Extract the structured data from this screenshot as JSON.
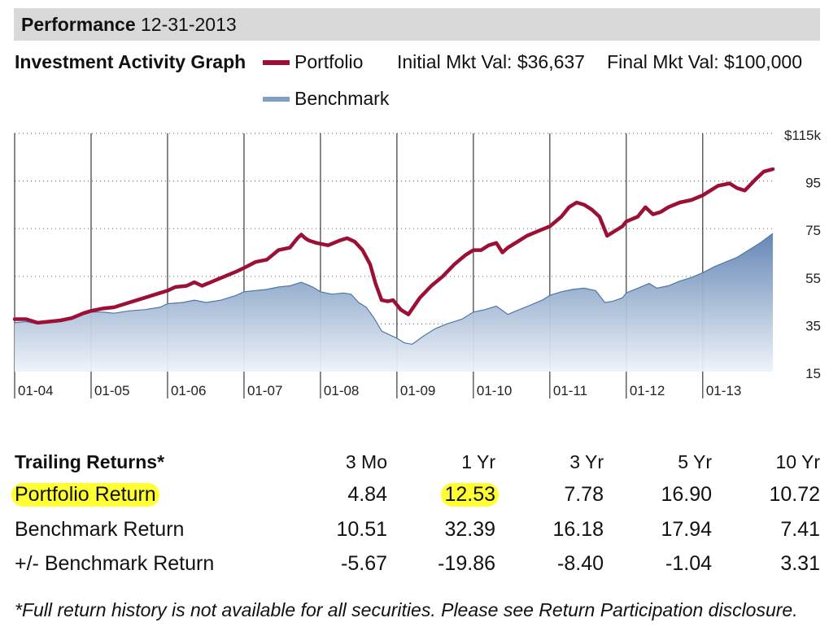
{
  "header": {
    "title": "Performance",
    "date": "12-31-2013"
  },
  "graph": {
    "title": "Investment Activity Graph",
    "legend": [
      {
        "label": "Portfolio",
        "color": "#9b1034"
      },
      {
        "label": "Benchmark",
        "color": "#7f9fc6"
      }
    ],
    "initial_mkt_val": "Initial Mkt Val: $36,637",
    "final_mkt_val": "Final Mkt Val: $100,000"
  },
  "chart_data": {
    "type": "line",
    "x_tick_labels": [
      "01-04",
      "01-05",
      "01-06",
      "01-07",
      "01-08",
      "01-09",
      "01-10",
      "01-11",
      "01-12",
      "01-13"
    ],
    "y_tick_labels": [
      "$115k",
      "95",
      "75",
      "55",
      "35",
      "15"
    ],
    "ylim": [
      15,
      115
    ],
    "x_start": 2004.0,
    "x_end": 2013.917,
    "grid": "horizontal dotted gridlines, vertical lines at each year",
    "series": [
      {
        "name": "Portfolio",
        "type": "line",
        "color": "#9b1034",
        "points": [
          [
            2004.0,
            37
          ],
          [
            2004.15,
            37
          ],
          [
            2004.3,
            35.5
          ],
          [
            2004.45,
            36
          ],
          [
            2004.6,
            36.5
          ],
          [
            2004.75,
            37.5
          ],
          [
            2004.9,
            39.5
          ],
          [
            2005.0,
            40.5
          ],
          [
            2005.15,
            41.5
          ],
          [
            2005.3,
            42
          ],
          [
            2005.5,
            44
          ],
          [
            2005.7,
            46
          ],
          [
            2005.9,
            48
          ],
          [
            2006.0,
            49
          ],
          [
            2006.1,
            50.5
          ],
          [
            2006.25,
            51
          ],
          [
            2006.35,
            52.5
          ],
          [
            2006.45,
            51
          ],
          [
            2006.6,
            53
          ],
          [
            2006.75,
            55
          ],
          [
            2006.9,
            57
          ],
          [
            2007.0,
            58.5
          ],
          [
            2007.15,
            61
          ],
          [
            2007.3,
            62
          ],
          [
            2007.45,
            66
          ],
          [
            2007.6,
            67
          ],
          [
            2007.7,
            71
          ],
          [
            2007.75,
            72.5
          ],
          [
            2007.8,
            71
          ],
          [
            2007.85,
            70
          ],
          [
            2007.95,
            69
          ],
          [
            2008.1,
            68
          ],
          [
            2008.25,
            70
          ],
          [
            2008.35,
            71
          ],
          [
            2008.45,
            69.5
          ],
          [
            2008.55,
            66
          ],
          [
            2008.65,
            60
          ],
          [
            2008.72,
            52
          ],
          [
            2008.8,
            45
          ],
          [
            2008.88,
            44.5
          ],
          [
            2008.95,
            45
          ],
          [
            2009.05,
            41
          ],
          [
            2009.15,
            39
          ],
          [
            2009.3,
            46
          ],
          [
            2009.45,
            51
          ],
          [
            2009.6,
            55
          ],
          [
            2009.75,
            60
          ],
          [
            2009.9,
            64
          ],
          [
            2010.0,
            66
          ],
          [
            2010.1,
            66
          ],
          [
            2010.2,
            68
          ],
          [
            2010.3,
            69
          ],
          [
            2010.38,
            65
          ],
          [
            2010.45,
            67
          ],
          [
            2010.55,
            69
          ],
          [
            2010.7,
            72
          ],
          [
            2010.85,
            74
          ],
          [
            2011.0,
            76
          ],
          [
            2011.15,
            80
          ],
          [
            2011.25,
            84
          ],
          [
            2011.35,
            86
          ],
          [
            2011.45,
            85
          ],
          [
            2011.55,
            83
          ],
          [
            2011.65,
            80
          ],
          [
            2011.75,
            72
          ],
          [
            2011.85,
            74
          ],
          [
            2011.95,
            76
          ],
          [
            2012.0,
            78
          ],
          [
            2012.15,
            80
          ],
          [
            2012.25,
            84
          ],
          [
            2012.35,
            81
          ],
          [
            2012.45,
            82
          ],
          [
            2012.55,
            84
          ],
          [
            2012.7,
            86
          ],
          [
            2012.85,
            87
          ],
          [
            2013.0,
            89
          ],
          [
            2013.1,
            91
          ],
          [
            2013.2,
            93
          ],
          [
            2013.35,
            94
          ],
          [
            2013.45,
            92
          ],
          [
            2013.55,
            91
          ],
          [
            2013.7,
            96
          ],
          [
            2013.8,
            99
          ],
          [
            2013.917,
            100
          ]
        ]
      },
      {
        "name": "Benchmark",
        "type": "area",
        "color": "#6a8fbd",
        "points": [
          [
            2004.0,
            35.5
          ],
          [
            2004.15,
            36
          ],
          [
            2004.3,
            35
          ],
          [
            2004.45,
            35.5
          ],
          [
            2004.6,
            36
          ],
          [
            2004.75,
            37
          ],
          [
            2004.9,
            39
          ],
          [
            2005.0,
            40
          ],
          [
            2005.15,
            40
          ],
          [
            2005.3,
            39.5
          ],
          [
            2005.5,
            40.5
          ],
          [
            2005.7,
            41
          ],
          [
            2005.9,
            42
          ],
          [
            2006.0,
            43.5
          ],
          [
            2006.2,
            44
          ],
          [
            2006.35,
            45
          ],
          [
            2006.5,
            44
          ],
          [
            2006.7,
            45
          ],
          [
            2006.9,
            47
          ],
          [
            2007.0,
            48.5
          ],
          [
            2007.15,
            49
          ],
          [
            2007.3,
            49.5
          ],
          [
            2007.45,
            50.5
          ],
          [
            2007.6,
            51
          ],
          [
            2007.75,
            52.5
          ],
          [
            2007.9,
            50.5
          ],
          [
            2008.0,
            48.5
          ],
          [
            2008.15,
            47.5
          ],
          [
            2008.3,
            48
          ],
          [
            2008.4,
            47.5
          ],
          [
            2008.5,
            44
          ],
          [
            2008.6,
            42
          ],
          [
            2008.7,
            37.5
          ],
          [
            2008.8,
            32
          ],
          [
            2008.9,
            30.5
          ],
          [
            2009.0,
            29
          ],
          [
            2009.1,
            27
          ],
          [
            2009.2,
            26.5
          ],
          [
            2009.35,
            30
          ],
          [
            2009.5,
            33
          ],
          [
            2009.65,
            35
          ],
          [
            2009.85,
            37
          ],
          [
            2010.0,
            40
          ],
          [
            2010.15,
            41
          ],
          [
            2010.3,
            42.5
          ],
          [
            2010.45,
            39
          ],
          [
            2010.6,
            41
          ],
          [
            2010.75,
            43
          ],
          [
            2010.9,
            45
          ],
          [
            2011.0,
            47
          ],
          [
            2011.15,
            48.5
          ],
          [
            2011.3,
            49.5
          ],
          [
            2011.45,
            50
          ],
          [
            2011.6,
            49
          ],
          [
            2011.72,
            44
          ],
          [
            2011.82,
            44.5
          ],
          [
            2011.95,
            46
          ],
          [
            2012.0,
            48
          ],
          [
            2012.15,
            50
          ],
          [
            2012.3,
            52
          ],
          [
            2012.4,
            50
          ],
          [
            2012.55,
            51
          ],
          [
            2012.7,
            53
          ],
          [
            2012.85,
            54.5
          ],
          [
            2013.0,
            56.5
          ],
          [
            2013.15,
            59
          ],
          [
            2013.3,
            61
          ],
          [
            2013.45,
            63
          ],
          [
            2013.6,
            66
          ],
          [
            2013.75,
            69
          ],
          [
            2013.917,
            73
          ]
        ]
      }
    ]
  },
  "trailing_returns": {
    "title": "Trailing Returns*",
    "columns": [
      "3 Mo",
      "1 Yr",
      "3 Yr",
      "5 Yr",
      "10 Yr"
    ],
    "rows": [
      {
        "label": "Portfolio Return",
        "values": [
          "4.84",
          "12.53",
          "7.78",
          "16.90",
          "10.72"
        ],
        "highlight_label": true,
        "highlight_index": 1
      },
      {
        "label": "Benchmark Return",
        "values": [
          "10.51",
          "32.39",
          "16.18",
          "17.94",
          "7.41"
        ]
      },
      {
        "label": "+/- Benchmark Return",
        "values": [
          "-5.67",
          "-19.86",
          "-8.40",
          "-1.04",
          "3.31"
        ]
      }
    ],
    "highlight_color": "#ffff33"
  },
  "footnote": "*Full return history is not available for all securities.  Please see Return Participation disclosure."
}
